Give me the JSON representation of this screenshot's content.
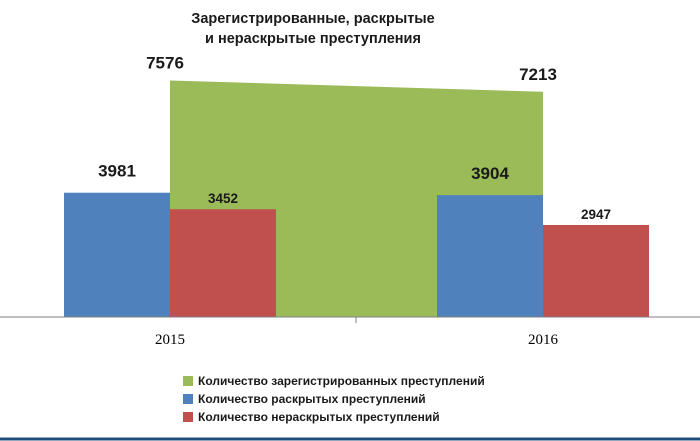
{
  "chart_data": {
    "type": "bar",
    "title": [
      "Зарегистрированные, раскрытые",
      "и нераскрытые преступления"
    ],
    "categories": [
      "2015",
      "2016"
    ],
    "series": [
      {
        "name": "Количество зарегистрированных преступлений",
        "values": [
          7576,
          7213
        ],
        "color": "#9bbb59",
        "style": "area"
      },
      {
        "name": "Количество раскрытых преступлений",
        "values": [
          3981,
          3904
        ],
        "color": "#4f81bd",
        "style": "bar"
      },
      {
        "name": "Количество нераскрытых преступлений",
        "values": [
          3452,
          2947
        ],
        "color": "#c0504d",
        "style": "bar"
      }
    ],
    "ylim": [
      0,
      9000
    ],
    "grid": false,
    "legend": "bottom"
  }
}
